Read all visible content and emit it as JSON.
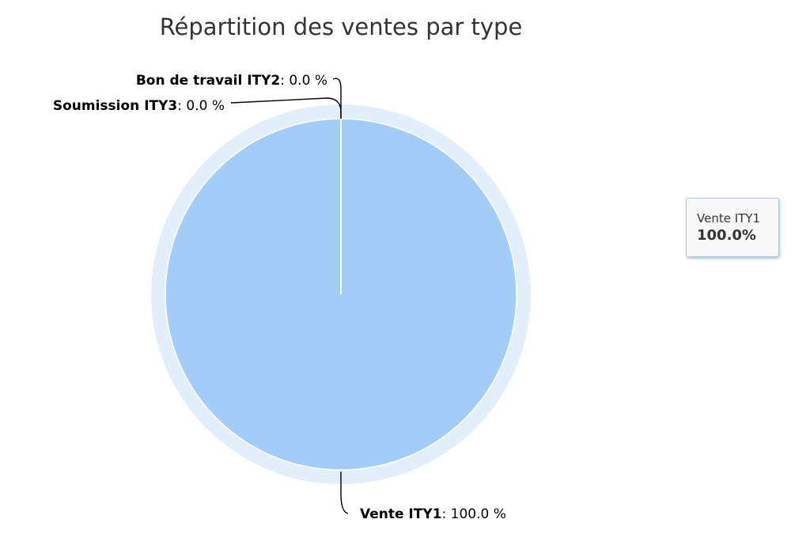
{
  "chart_data": {
    "type": "pie",
    "title": "Répartition des ventes par type",
    "unit": "%",
    "slices": [
      {
        "name": "Vente ITY1",
        "value": 100.0,
        "label_value": ": 100.0 %"
      },
      {
        "name": "Bon de travail ITY2",
        "value": 0.0,
        "label_value": ": 0.0 %"
      },
      {
        "name": "Soumission ITY3",
        "value": 0.0,
        "label_value": ": 0.0 %"
      }
    ],
    "colors": {
      "slice_fill": "#a3cdf9",
      "halo_fill": "#e3eefb",
      "slice_border": "#ffffff",
      "label_text": "#000000",
      "title_text": "#333333"
    },
    "hovered_slice": "Vente ITY1"
  },
  "tooltip": {
    "name": "Vente ITY1",
    "value": "100.0%"
  }
}
